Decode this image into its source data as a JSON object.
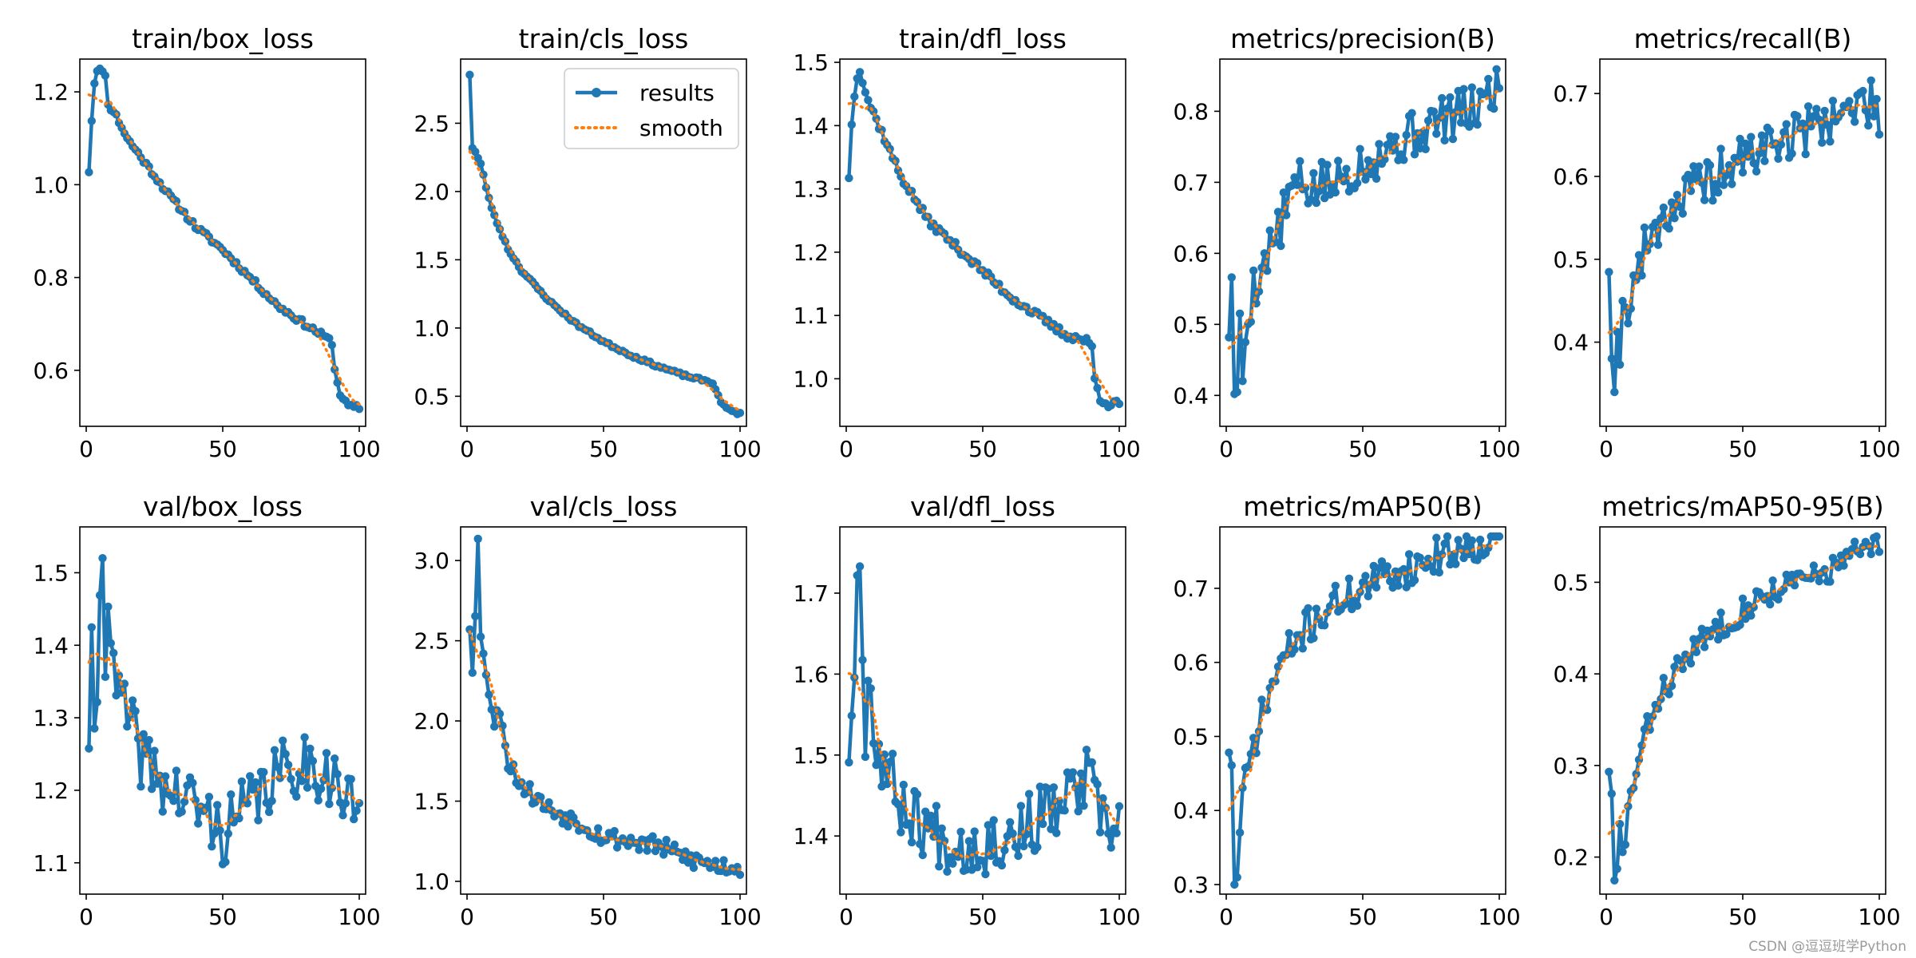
{
  "watermark": "CSDN @逗逗班学Python",
  "colors": {
    "results": "#1f77b4",
    "smooth": "#ff7f0e",
    "axes": "#000000"
  },
  "legend": {
    "results_label": "results",
    "smooth_label": "smooth",
    "location": "upper right of train/cls_loss panel"
  },
  "chart_data": [
    {
      "type": "line",
      "title": "train/box_loss",
      "xlim": [
        0,
        100
      ],
      "ylim": [
        0.5,
        1.25
      ],
      "xticks": [
        0,
        50,
        100
      ],
      "yticks": [
        0.6,
        0.8,
        1.0,
        1.2
      ],
      "ytick_labels": [
        "0.6",
        "0.8",
        "1.0",
        "1.2"
      ],
      "keyframes": [
        [
          1,
          1.03
        ],
        [
          2,
          1.14
        ],
        [
          3,
          1.22
        ],
        [
          4,
          1.25
        ],
        [
          5,
          1.25
        ],
        [
          6,
          1.24
        ],
        [
          7,
          1.24
        ],
        [
          8,
          1.17
        ],
        [
          10,
          1.16
        ],
        [
          15,
          1.1
        ],
        [
          20,
          1.06
        ],
        [
          30,
          0.98
        ],
        [
          40,
          0.91
        ],
        [
          50,
          0.86
        ],
        [
          60,
          0.8
        ],
        [
          70,
          0.74
        ],
        [
          80,
          0.7
        ],
        [
          88,
          0.67
        ],
        [
          90,
          0.66
        ],
        [
          91,
          0.6
        ],
        [
          93,
          0.55
        ],
        [
          95,
          0.53
        ],
        [
          97,
          0.52
        ],
        [
          100,
          0.52
        ]
      ],
      "noise": 0.006,
      "seed": 11
    },
    {
      "type": "line",
      "title": "train/cls_loss",
      "xlim": [
        0,
        100
      ],
      "ylim": [
        0.35,
        2.9
      ],
      "xticks": [
        0,
        50,
        100
      ],
      "yticks": [
        0.5,
        1.0,
        1.5,
        2.0,
        2.5
      ],
      "ytick_labels": [
        "0.5",
        "1.0",
        "1.5",
        "2.0",
        "2.5"
      ],
      "keyframes": [
        [
          1,
          2.86
        ],
        [
          2,
          2.32
        ],
        [
          3,
          2.29
        ],
        [
          5,
          2.2
        ],
        [
          8,
          1.95
        ],
        [
          10,
          1.82
        ],
        [
          15,
          1.58
        ],
        [
          20,
          1.42
        ],
        [
          30,
          1.2
        ],
        [
          40,
          1.03
        ],
        [
          50,
          0.9
        ],
        [
          60,
          0.8
        ],
        [
          70,
          0.72
        ],
        [
          80,
          0.65
        ],
        [
          88,
          0.61
        ],
        [
          90,
          0.6
        ],
        [
          92,
          0.5
        ],
        [
          94,
          0.43
        ],
        [
          96,
          0.4
        ],
        [
          100,
          0.37
        ]
      ],
      "noise": 0.01,
      "seed": 23,
      "legend": [
        "results",
        "smooth"
      ]
    },
    {
      "type": "line",
      "title": "train/dfl_loss",
      "xlim": [
        0,
        100
      ],
      "ylim": [
        0.94,
        1.49
      ],
      "xticks": [
        0,
        50,
        100
      ],
      "yticks": [
        1.0,
        1.1,
        1.2,
        1.3,
        1.4,
        1.5
      ],
      "ytick_labels": [
        "1.0",
        "1.1",
        "1.2",
        "1.3",
        "1.4",
        "1.5"
      ],
      "keyframes": [
        [
          1,
          1.32
        ],
        [
          2,
          1.4
        ],
        [
          3,
          1.45
        ],
        [
          4,
          1.48
        ],
        [
          5,
          1.49
        ],
        [
          6,
          1.47
        ],
        [
          8,
          1.44
        ],
        [
          10,
          1.42
        ],
        [
          15,
          1.37
        ],
        [
          20,
          1.32
        ],
        [
          30,
          1.25
        ],
        [
          40,
          1.21
        ],
        [
          50,
          1.17
        ],
        [
          60,
          1.13
        ],
        [
          70,
          1.1
        ],
        [
          80,
          1.07
        ],
        [
          88,
          1.06
        ],
        [
          90,
          1.05
        ],
        [
          91,
          1.0
        ],
        [
          93,
          0.97
        ],
        [
          96,
          0.96
        ],
        [
          100,
          0.96
        ]
      ],
      "noise": 0.006,
      "seed": 37
    },
    {
      "type": "line",
      "title": "metrics/precision(B)",
      "xlim": [
        0,
        100
      ],
      "ylim": [
        0.37,
        0.86
      ],
      "xticks": [
        0,
        50,
        100
      ],
      "yticks": [
        0.4,
        0.5,
        0.6,
        0.7,
        0.8
      ],
      "ytick_labels": [
        "0.4",
        "0.5",
        "0.6",
        "0.7",
        "0.8"
      ],
      "keyframes": [
        [
          1,
          0.5
        ],
        [
          2,
          0.55
        ],
        [
          3,
          0.42
        ],
        [
          4,
          0.38
        ],
        [
          5,
          0.5
        ],
        [
          6,
          0.43
        ],
        [
          8,
          0.52
        ],
        [
          10,
          0.55
        ],
        [
          15,
          0.6
        ],
        [
          20,
          0.64
        ],
        [
          25,
          0.7
        ],
        [
          30,
          0.69
        ],
        [
          40,
          0.7
        ],
        [
          50,
          0.73
        ],
        [
          60,
          0.75
        ],
        [
          70,
          0.77
        ],
        [
          80,
          0.79
        ],
        [
          90,
          0.8
        ],
        [
          95,
          0.82
        ],
        [
          100,
          0.84
        ]
      ],
      "noise": 0.035,
      "seed": 5
    },
    {
      "type": "line",
      "title": "metrics/recall(B)",
      "xlim": [
        0,
        100
      ],
      "ylim": [
        0.31,
        0.73
      ],
      "xticks": [
        0,
        50,
        100
      ],
      "yticks": [
        0.4,
        0.5,
        0.6,
        0.7
      ],
      "ytick_labels": [
        "0.4",
        "0.5",
        "0.6",
        "0.7"
      ],
      "keyframes": [
        [
          1,
          0.5
        ],
        [
          2,
          0.41
        ],
        [
          3,
          0.32
        ],
        [
          4,
          0.42
        ],
        [
          5,
          0.4
        ],
        [
          6,
          0.43
        ],
        [
          8,
          0.45
        ],
        [
          10,
          0.47
        ],
        [
          15,
          0.52
        ],
        [
          20,
          0.55
        ],
        [
          30,
          0.58
        ],
        [
          40,
          0.6
        ],
        [
          50,
          0.62
        ],
        [
          60,
          0.64
        ],
        [
          70,
          0.65
        ],
        [
          80,
          0.67
        ],
        [
          90,
          0.68
        ],
        [
          95,
          0.69
        ],
        [
          100,
          0.68
        ]
      ],
      "noise": 0.03,
      "seed": 19
    },
    {
      "type": "line",
      "title": "val/box_loss",
      "xlim": [
        0,
        100
      ],
      "ylim": [
        1.07,
        1.55
      ],
      "xticks": [
        0,
        50,
        100
      ],
      "yticks": [
        1.1,
        1.2,
        1.3,
        1.4,
        1.5
      ],
      "ytick_labels": [
        "1.1",
        "1.2",
        "1.3",
        "1.4",
        "1.5"
      ],
      "keyframes": [
        [
          1,
          1.28
        ],
        [
          2,
          1.38
        ],
        [
          3,
          1.25
        ],
        [
          4,
          1.35
        ],
        [
          5,
          1.45
        ],
        [
          6,
          1.54
        ],
        [
          7,
          1.4
        ],
        [
          8,
          1.48
        ],
        [
          10,
          1.35
        ],
        [
          15,
          1.3
        ],
        [
          20,
          1.25
        ],
        [
          30,
          1.2
        ],
        [
          40,
          1.18
        ],
        [
          50,
          1.14
        ],
        [
          60,
          1.18
        ],
        [
          70,
          1.22
        ],
        [
          80,
          1.24
        ],
        [
          90,
          1.22
        ],
        [
          95,
          1.18
        ],
        [
          100,
          1.19
        ]
      ],
      "noise": 0.045,
      "seed": 41
    },
    {
      "type": "line",
      "title": "val/cls_loss",
      "xlim": [
        0,
        100
      ],
      "ylim": [
        0.98,
        3.15
      ],
      "xticks": [
        0,
        50,
        100
      ],
      "yticks": [
        1.0,
        1.5,
        2.0,
        2.5,
        3.0
      ],
      "ytick_labels": [
        "1.0",
        "1.5",
        "2.0",
        "2.5",
        "3.0"
      ],
      "keyframes": [
        [
          1,
          2.6
        ],
        [
          2,
          2.35
        ],
        [
          3,
          2.7
        ],
        [
          4,
          3.12
        ],
        [
          5,
          2.5
        ],
        [
          6,
          2.45
        ],
        [
          8,
          2.2
        ],
        [
          10,
          1.95
        ],
        [
          12,
          2.1
        ],
        [
          15,
          1.75
        ],
        [
          20,
          1.6
        ],
        [
          30,
          1.45
        ],
        [
          40,
          1.38
        ],
        [
          50,
          1.28
        ],
        [
          60,
          1.25
        ],
        [
          70,
          1.22
        ],
        [
          80,
          1.15
        ],
        [
          90,
          1.1
        ],
        [
          100,
          1.09
        ]
      ],
      "noise": 0.06,
      "seed": 53
    },
    {
      "type": "line",
      "title": "val/dfl_loss",
      "xlim": [
        0,
        100
      ],
      "ylim": [
        1.34,
        1.77
      ],
      "xticks": [
        0,
        50,
        100
      ],
      "yticks": [
        1.4,
        1.5,
        1.6,
        1.7
      ],
      "ytick_labels": [
        "1.4",
        "1.5",
        "1.6",
        "1.7"
      ],
      "keyframes": [
        [
          1,
          1.51
        ],
        [
          2,
          1.56
        ],
        [
          3,
          1.58
        ],
        [
          4,
          1.75
        ],
        [
          5,
          1.77
        ],
        [
          6,
          1.6
        ],
        [
          7,
          1.52
        ],
        [
          8,
          1.63
        ],
        [
          10,
          1.52
        ],
        [
          15,
          1.48
        ],
        [
          20,
          1.44
        ],
        [
          30,
          1.41
        ],
        [
          40,
          1.39
        ],
        [
          50,
          1.39
        ],
        [
          60,
          1.4
        ],
        [
          70,
          1.42
        ],
        [
          80,
          1.44
        ],
        [
          88,
          1.47
        ],
        [
          90,
          1.46
        ],
        [
          95,
          1.4
        ],
        [
          100,
          1.42
        ]
      ],
      "noise": 0.04,
      "seed": 67
    },
    {
      "type": "line",
      "title": "metrics/mAP50(B)",
      "xlim": [
        0,
        100
      ],
      "ylim": [
        0.3,
        0.77
      ],
      "xticks": [
        0,
        50,
        100
      ],
      "yticks": [
        0.3,
        0.4,
        0.5,
        0.6,
        0.7
      ],
      "ytick_labels": [
        "0.3",
        "0.4",
        "0.5",
        "0.6",
        "0.7"
      ],
      "keyframes": [
        [
          1,
          0.49
        ],
        [
          2,
          0.45
        ],
        [
          3,
          0.3
        ],
        [
          4,
          0.32
        ],
        [
          5,
          0.36
        ],
        [
          6,
          0.42
        ],
        [
          8,
          0.45
        ],
        [
          10,
          0.49
        ],
        [
          15,
          0.55
        ],
        [
          20,
          0.6
        ],
        [
          30,
          0.65
        ],
        [
          40,
          0.68
        ],
        [
          50,
          0.7
        ],
        [
          60,
          0.72
        ],
        [
          70,
          0.73
        ],
        [
          80,
          0.75
        ],
        [
          90,
          0.76
        ],
        [
          100,
          0.77
        ]
      ],
      "noise": 0.025,
      "seed": 71
    },
    {
      "type": "line",
      "title": "metrics/mAP50-95(B)",
      "xlim": [
        0,
        100
      ],
      "ylim": [
        0.17,
        0.55
      ],
      "xticks": [
        0,
        50,
        100
      ],
      "yticks": [
        0.2,
        0.3,
        0.4,
        0.5
      ],
      "ytick_labels": [
        "0.2",
        "0.3",
        "0.4",
        "0.5"
      ],
      "keyframes": [
        [
          1,
          0.3
        ],
        [
          2,
          0.26
        ],
        [
          3,
          0.17
        ],
        [
          4,
          0.18
        ],
        [
          5,
          0.23
        ],
        [
          6,
          0.2
        ],
        [
          8,
          0.25
        ],
        [
          10,
          0.28
        ],
        [
          15,
          0.34
        ],
        [
          20,
          0.38
        ],
        [
          30,
          0.42
        ],
        [
          40,
          0.45
        ],
        [
          50,
          0.47
        ],
        [
          60,
          0.49
        ],
        [
          70,
          0.5
        ],
        [
          80,
          0.51
        ],
        [
          90,
          0.53
        ],
        [
          100,
          0.54
        ]
      ],
      "noise": 0.015,
      "seed": 83
    }
  ]
}
